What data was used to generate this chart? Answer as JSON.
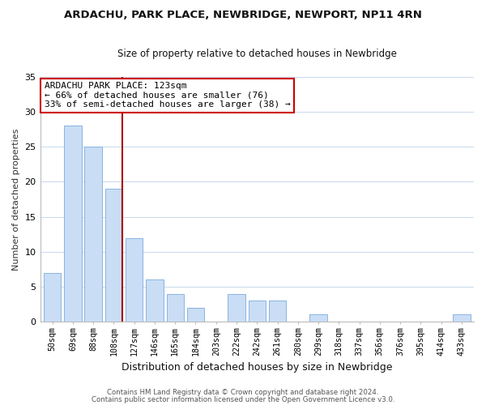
{
  "title": "ARDACHU, PARK PLACE, NEWBRIDGE, NEWPORT, NP11 4RN",
  "subtitle": "Size of property relative to detached houses in Newbridge",
  "xlabel": "Distribution of detached houses by size in Newbridge",
  "ylabel": "Number of detached properties",
  "bar_labels": [
    "50sqm",
    "69sqm",
    "88sqm",
    "108sqm",
    "127sqm",
    "146sqm",
    "165sqm",
    "184sqm",
    "203sqm",
    "222sqm",
    "242sqm",
    "261sqm",
    "280sqm",
    "299sqm",
    "318sqm",
    "337sqm",
    "356sqm",
    "376sqm",
    "395sqm",
    "414sqm",
    "433sqm"
  ],
  "bar_values": [
    7,
    28,
    25,
    19,
    12,
    6,
    4,
    2,
    0,
    4,
    3,
    3,
    0,
    1,
    0,
    0,
    0,
    0,
    0,
    0,
    1
  ],
  "bar_color": "#c9ddf5",
  "bar_edge_color": "#8ab4e0",
  "marker_line_color": "#aa0000",
  "marker_line_index": 3,
  "ylim": [
    0,
    35
  ],
  "yticks": [
    0,
    5,
    10,
    15,
    20,
    25,
    30,
    35
  ],
  "annotation_title": "ARDACHU PARK PLACE: 123sqm",
  "annotation_line1": "← 66% of detached houses are smaller (76)",
  "annotation_line2": "33% of semi-detached houses are larger (38) →",
  "annotation_box_color": "#ffffff",
  "annotation_box_edgecolor": "#cc0000",
  "footnote1": "Contains HM Land Registry data © Crown copyright and database right 2024.",
  "footnote2": "Contains public sector information licensed under the Open Government Licence v3.0.",
  "background_color": "#ffffff",
  "grid_color": "#c8d8ec"
}
